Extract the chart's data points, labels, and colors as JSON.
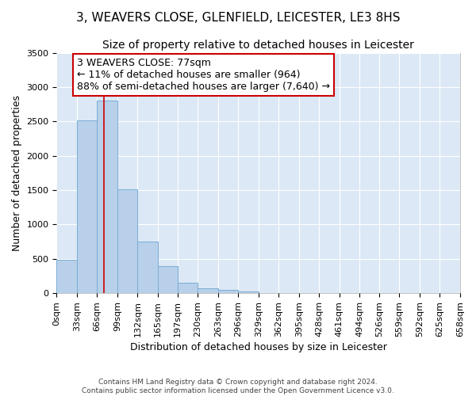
{
  "title": "3, WEAVERS CLOSE, GLENFIELD, LEICESTER, LE3 8HS",
  "subtitle": "Size of property relative to detached houses in Leicester",
  "xlabel": "Distribution of detached houses by size in Leicester",
  "ylabel": "Number of detached properties",
  "footer_line1": "Contains HM Land Registry data © Crown copyright and database right 2024.",
  "footer_line2": "Contains public sector information licensed under the Open Government Licence v3.0.",
  "bar_edges": [
    0,
    33,
    66,
    99,
    132,
    165,
    197,
    230,
    263,
    296,
    329,
    362,
    395,
    428,
    461,
    494,
    526,
    559,
    592,
    625,
    658
  ],
  "bar_heights": [
    490,
    2510,
    2800,
    1510,
    750,
    400,
    150,
    75,
    50,
    20,
    0,
    0,
    0,
    0,
    0,
    0,
    0,
    0,
    0,
    0
  ],
  "bar_color": "#b8d0ea",
  "bar_edge_color": "#7aadd4",
  "property_size": 77,
  "annotation_text": "3 WEAVERS CLOSE: 77sqm\n← 11% of detached houses are smaller (964)\n88% of semi-detached houses are larger (7,640) →",
  "annotation_box_color": "#ffffff",
  "annotation_box_edge_color": "#cc0000",
  "vline_color": "#cc0000",
  "ylim": [
    0,
    3500
  ],
  "yticks": [
    0,
    500,
    1000,
    1500,
    2000,
    2500,
    3000,
    3500
  ],
  "background_color": "#dce8f5",
  "title_fontsize": 11,
  "subtitle_fontsize": 10,
  "axis_label_fontsize": 9,
  "tick_fontsize": 8,
  "annotation_fontsize": 9
}
